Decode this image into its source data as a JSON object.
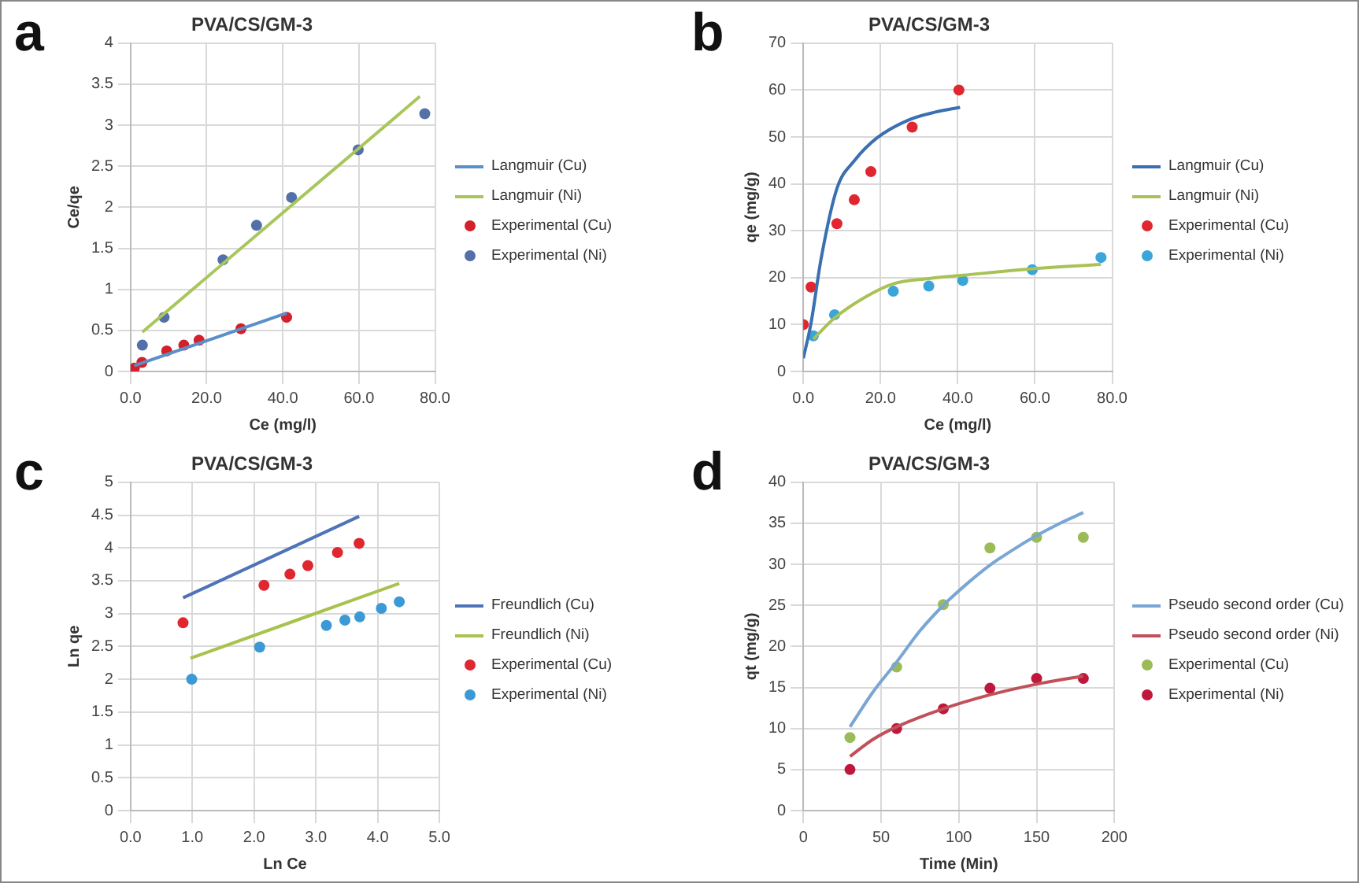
{
  "chart_data": [
    {
      "type": "scatter",
      "title": "PVA/CS/GM-3",
      "xlabel": "Ce (mg/l)",
      "ylabel": "Ce/qe",
      "annotations": [
        "a"
      ],
      "xlim": [
        0,
        80
      ],
      "xticks": [
        {
          "value": 0,
          "label": "0.0"
        },
        {
          "value": 20,
          "label": "20.0"
        },
        {
          "value": 40,
          "label": "40.0"
        },
        {
          "value": 60,
          "label": "60.0"
        },
        {
          "value": 80,
          "label": "80.0"
        }
      ],
      "ylim": [
        0,
        4
      ],
      "yticks": [
        0,
        0.5,
        1,
        1.5,
        2,
        2.5,
        3,
        3.5,
        4
      ],
      "grid": true,
      "legend": "right",
      "series": [
        {
          "name": "Langmuir (Cu)",
          "type": "line",
          "marker": "none",
          "color": "#5b8fc7",
          "x": [
            1,
            41
          ],
          "values": [
            0.07,
            0.71
          ]
        },
        {
          "name": "Langmuir (Ni)",
          "type": "line",
          "marker": "none",
          "color": "#a8c65a",
          "x": [
            3.1,
            76
          ],
          "values": [
            0.48,
            3.35
          ]
        },
        {
          "name": "Experimental (Cu)",
          "type": "scatter",
          "marker": "circle",
          "color": "#d4202a",
          "x": [
            1,
            3,
            9.5,
            14,
            18,
            29,
            41
          ],
          "values": [
            0.04,
            0.11,
            0.25,
            0.32,
            0.38,
            0.52,
            0.66
          ]
        },
        {
          "name": "Experimental (Ni)",
          "type": "scatter",
          "marker": "circle",
          "color": "#5470a8",
          "x": [
            3.1,
            8.8,
            24.3,
            33.1,
            42.3,
            59.8,
            77.3
          ],
          "values": [
            0.32,
            0.66,
            1.36,
            1.78,
            2.12,
            2.7,
            3.14
          ]
        }
      ]
    },
    {
      "type": "scatter",
      "title": "PVA/CS/GM-3",
      "xlabel": "Ce (mg/l)",
      "ylabel": "qe (mg/g)",
      "annotations": [
        "b"
      ],
      "xlim": [
        0,
        80
      ],
      "xticks": [
        {
          "value": 0,
          "label": "0.0"
        },
        {
          "value": 20,
          "label": "20.0"
        },
        {
          "value": 40,
          "label": "40.0"
        },
        {
          "value": 60,
          "label": "60.0"
        },
        {
          "value": 80,
          "label": "80.0"
        }
      ],
      "ylim": [
        0,
        70
      ],
      "yticks": [
        0,
        10,
        20,
        30,
        40,
        50,
        60,
        70
      ],
      "grid": true,
      "legend": "right",
      "series": [
        {
          "name": "Langmuir (Cu)",
          "type": "line",
          "marker": "none",
          "color": "#3a6fb0",
          "x": [
            0,
            2,
            4.6,
            8.7,
            13.3,
            19.1,
            27.2,
            34.2,
            40.6
          ],
          "values": [
            2.8,
            10.3,
            24,
            39,
            45,
            49.8,
            53.6,
            55.3,
            56.3
          ]
        },
        {
          "name": "Langmuir (Ni)",
          "type": "line",
          "marker": "none",
          "color": "#a9c255",
          "x": [
            2.6,
            8.1,
            15.7,
            23.3,
            32.5,
            41.3,
            59.3,
            77.1
          ],
          "values": [
            6.9,
            11.4,
            15.7,
            18.7,
            19.8,
            20.5,
            21.9,
            22.8
          ]
        },
        {
          "name": "Experimental (Cu)",
          "type": "scatter",
          "marker": "circle",
          "color": "#e0262e",
          "x": [
            0,
            2,
            8.7,
            13.2,
            17.5,
            28.2,
            40.3
          ],
          "values": [
            10,
            18,
            31.5,
            36.6,
            42.6,
            52.1,
            60
          ]
        },
        {
          "name": "Experimental (Ni)",
          "type": "scatter",
          "marker": "circle",
          "color": "#3aa5d8",
          "x": [
            2.6,
            8.1,
            23.3,
            32.5,
            41.3,
            59.3,
            77.1
          ],
          "values": [
            7.6,
            12.1,
            17.1,
            18.2,
            19.4,
            21.7,
            24.3
          ]
        }
      ]
    },
    {
      "type": "scatter",
      "title": "PVA/CS/GM-3",
      "xlabel": "Ln Ce",
      "ylabel": "Ln qe",
      "annotations": [
        "c"
      ],
      "xlim": [
        0,
        5
      ],
      "xticks": [
        {
          "value": 0,
          "label": "0.0"
        },
        {
          "value": 1,
          "label": "1.0"
        },
        {
          "value": 2,
          "label": "2.0"
        },
        {
          "value": 3,
          "label": "3.0"
        },
        {
          "value": 4,
          "label": "4.0"
        },
        {
          "value": 5,
          "label": "5.0"
        }
      ],
      "ylim": [
        0,
        5
      ],
      "yticks": [
        0,
        0.5,
        1,
        1.5,
        2,
        2.5,
        3,
        3.5,
        4,
        4.5,
        5
      ],
      "grid": true,
      "legend": "right",
      "series": [
        {
          "name": "Freundlich (Cu)",
          "type": "line",
          "marker": "none",
          "color": "#4f73b8",
          "x": [
            0.85,
            3.7
          ],
          "values": [
            3.24,
            4.48
          ]
        },
        {
          "name": "Freundlich (Ni)",
          "type": "line",
          "marker": "none",
          "color": "#a8c24e",
          "x": [
            0.97,
            4.35
          ],
          "values": [
            2.32,
            3.46
          ]
        },
        {
          "name": "Experimental (Cu)",
          "type": "scatter",
          "marker": "circle",
          "color": "#e0262e",
          "x": [
            0.85,
            2.16,
            2.58,
            2.87,
            3.35,
            3.7
          ],
          "values": [
            2.86,
            3.43,
            3.6,
            3.73,
            3.93,
            4.07
          ]
        },
        {
          "name": "Experimental (Ni)",
          "type": "scatter",
          "marker": "circle",
          "color": "#3b9ad6",
          "x": [
            0.99,
            2.09,
            3.17,
            3.47,
            3.71,
            4.06,
            4.35
          ],
          "values": [
            2,
            2.49,
            2.82,
            2.9,
            2.95,
            3.08,
            3.18
          ]
        }
      ]
    },
    {
      "type": "scatter",
      "title": "PVA/CS/GM-3",
      "xlabel": "Time (Min)",
      "ylabel": "qt (mg/g)",
      "annotations": [
        "d"
      ],
      "xlim": [
        0,
        200
      ],
      "xticks": [
        0,
        50,
        100,
        150,
        200
      ],
      "ylim": [
        0,
        40
      ],
      "yticks": [
        0,
        5,
        10,
        15,
        20,
        25,
        30,
        35,
        40
      ],
      "grid": true,
      "legend": "right",
      "series": [
        {
          "name": "Pseudo second order (Cu)",
          "type": "line",
          "marker": "none",
          "color": "#7aa6d4",
          "x": [
            30,
            45,
            60,
            75,
            90,
            105,
            120,
            135,
            150,
            165,
            180
          ],
          "values": [
            10.2,
            14.5,
            18.1,
            21.9,
            25,
            27.6,
            29.9,
            31.8,
            33.5,
            35,
            36.3
          ]
        },
        {
          "name": "Pseudo second order (Ni)",
          "type": "line",
          "marker": "none",
          "color": "#c0505a",
          "x": [
            30,
            45,
            60,
            90,
            120,
            150,
            180
          ],
          "values": [
            6.6,
            8.7,
            10.2,
            12.4,
            14.1,
            15.4,
            16.4
          ]
        },
        {
          "name": "Experimental (Cu)",
          "type": "scatter",
          "marker": "circle",
          "color": "#9bbb59",
          "x": [
            30,
            60,
            90,
            120,
            150,
            180
          ],
          "values": [
            8.9,
            17.5,
            25.1,
            32,
            33.3,
            33.3
          ]
        },
        {
          "name": "Experimental (Ni)",
          "type": "scatter",
          "marker": "circle",
          "color": "#c0183c",
          "x": [
            30,
            60,
            90,
            120,
            150,
            180
          ],
          "values": [
            5,
            10,
            12.4,
            14.9,
            16.1,
            16.1
          ]
        }
      ]
    }
  ]
}
